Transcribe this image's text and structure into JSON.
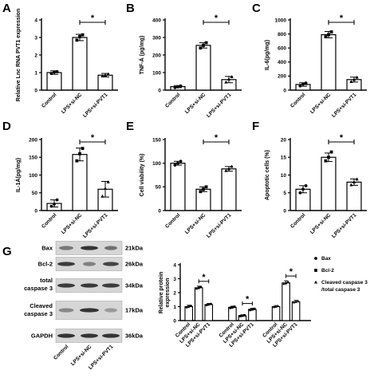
{
  "panel_letters": {
    "a": "A",
    "b": "B",
    "c": "C",
    "d": "D",
    "e": "E",
    "f": "F",
    "g": "G"
  },
  "colors": {
    "bar_fill": "#ffffff",
    "ink": "#000000",
    "blot_bg": "#d6d6d6",
    "band": "#2b2b2b"
  },
  "blot": {
    "proteins": [
      "Bax",
      "Bcl-2",
      "total caspase 3",
      "Cleaved caspase 3",
      "GAPDH"
    ],
    "sizes": [
      "21kDa",
      "26kDa",
      "34kDa",
      "17kDa",
      "36kDa"
    ],
    "lanes": [
      "Control",
      "LPS+si-NC",
      "LPS+si-PVT1"
    ]
  },
  "chart_data": [
    {
      "id": "A",
      "type": "bar",
      "categories": [
        "Control",
        "LPS+si-NC",
        "LPS+si-PVT1"
      ],
      "values": [
        1.0,
        3.0,
        0.85
      ],
      "errors": [
        0.1,
        0.18,
        0.1
      ],
      "points": [
        [
          0.95,
          1.02,
          1.05
        ],
        [
          2.85,
          3.05,
          3.15
        ],
        [
          0.8,
          0.85,
          0.9
        ]
      ],
      "ylabel": "Relative Lnc RNA PVT1 expression",
      "ylim": [
        0,
        4
      ],
      "yticks": [
        0,
        1,
        2,
        3,
        4
      ],
      "sig": {
        "from": 1,
        "to": 2,
        "label": "*"
      }
    },
    {
      "id": "B",
      "type": "bar",
      "categories": [
        "Control",
        "LPS+si-NC",
        "LPS+si-PVT1"
      ],
      "values": [
        20,
        255,
        60
      ],
      "errors": [
        6,
        15,
        18
      ],
      "points": [
        [
          14,
          18,
          24
        ],
        [
          240,
          255,
          270
        ],
        [
          45,
          62,
          75
        ]
      ],
      "ylabel": "TNF-Á (pg/mg)",
      "ylim": [
        0,
        400
      ],
      "yticks": [
        0,
        100,
        200,
        300,
        400
      ],
      "sig": {
        "from": 1,
        "to": 2,
        "label": "*"
      }
    },
    {
      "id": "C",
      "type": "bar",
      "categories": [
        "Control",
        "LPS+si-NC",
        "LPS+si-PVT1"
      ],
      "values": [
        80,
        790,
        150
      ],
      "errors": [
        25,
        45,
        35
      ],
      "points": [
        [
          60,
          85,
          100
        ],
        [
          760,
          790,
          830
        ],
        [
          120,
          150,
          180
        ]
      ],
      "ylabel": "IL-6(pg/mg)",
      "ylim": [
        0,
        1000
      ],
      "yticks": [
        0,
        200,
        400,
        600,
        800,
        1000
      ],
      "sig": {
        "from": 1,
        "to": 2,
        "label": "*"
      }
    },
    {
      "id": "D",
      "type": "bar",
      "categories": [
        "Control",
        "LPS+si-NC",
        "LPS+si-PVT1"
      ],
      "values": [
        20,
        158,
        60
      ],
      "errors": [
        10,
        18,
        22
      ],
      "points": [
        [
          12,
          18,
          30
        ],
        [
          140,
          160,
          175
        ],
        [
          40,
          62,
          80
        ]
      ],
      "ylabel": "IL-1Á(pg/mg)",
      "ylim": [
        0,
        200
      ],
      "yticks": [
        0,
        50,
        100,
        150,
        200
      ],
      "sig": {
        "from": 1,
        "to": 2,
        "label": "*"
      }
    },
    {
      "id": "E",
      "type": "bar",
      "categories": [
        "Control",
        "LPS+si-NC",
        "LPS+si-PVT1"
      ],
      "values": [
        100,
        45,
        88
      ],
      "errors": [
        4,
        5,
        5
      ],
      "points": [
        [
          96,
          100,
          104
        ],
        [
          40,
          45,
          50
        ],
        [
          84,
          88,
          93
        ]
      ],
      "ylabel": "Cell viability (%)",
      "ylim": [
        0,
        150
      ],
      "yticks": [
        0,
        50,
        100,
        150
      ],
      "sig": {
        "from": 1,
        "to": 2,
        "label": "*"
      }
    },
    {
      "id": "F",
      "type": "bar",
      "categories": [
        "Control",
        "LPS+si-NC",
        "LPS+si-PVT1"
      ],
      "values": [
        6,
        15,
        8
      ],
      "errors": [
        1,
        1.2,
        0.9
      ],
      "points": [
        [
          5,
          6,
          7
        ],
        [
          14,
          15,
          16.5
        ],
        [
          7.2,
          8,
          8.8
        ]
      ],
      "ylabel": "Apoptotic cells (%)",
      "ylim": [
        0,
        20
      ],
      "yticks": [
        0,
        5,
        10,
        15,
        20
      ],
      "sig": {
        "from": 1,
        "to": 2,
        "label": "*"
      }
    },
    {
      "id": "G",
      "type": "bar",
      "categories": [
        "Control",
        "LPS+si-NC",
        "LPS+si-PVT1"
      ],
      "ylabel": "Relative protein expression",
      "ylim": [
        0,
        4
      ],
      "yticks": [
        0,
        1,
        2,
        3,
        4
      ],
      "series": [
        {
          "name": "Bax",
          "marker": "circle",
          "values": [
            1.0,
            2.35,
            1.15
          ],
          "errors": [
            0.1,
            0.12,
            0.08
          ]
        },
        {
          "name": "Bcl-2",
          "marker": "square",
          "values": [
            0.95,
            0.35,
            0.8
          ],
          "errors": [
            0.08,
            0.06,
            0.08
          ]
        },
        {
          "name": "Cleaved caspase 3 /total caspase 3",
          "marker": "triangle",
          "values": [
            1.0,
            2.7,
            1.35
          ],
          "errors": [
            0.08,
            0.15,
            0.1
          ]
        }
      ],
      "legend": [
        "Bax",
        "Bcl-2",
        "Cleaved caspase 3",
        "/total caspase 3"
      ],
      "sigs": [
        {
          "series": 0,
          "label": "*"
        },
        {
          "series": 1,
          "label": "*"
        },
        {
          "series": 2,
          "label": "*"
        }
      ]
    }
  ]
}
